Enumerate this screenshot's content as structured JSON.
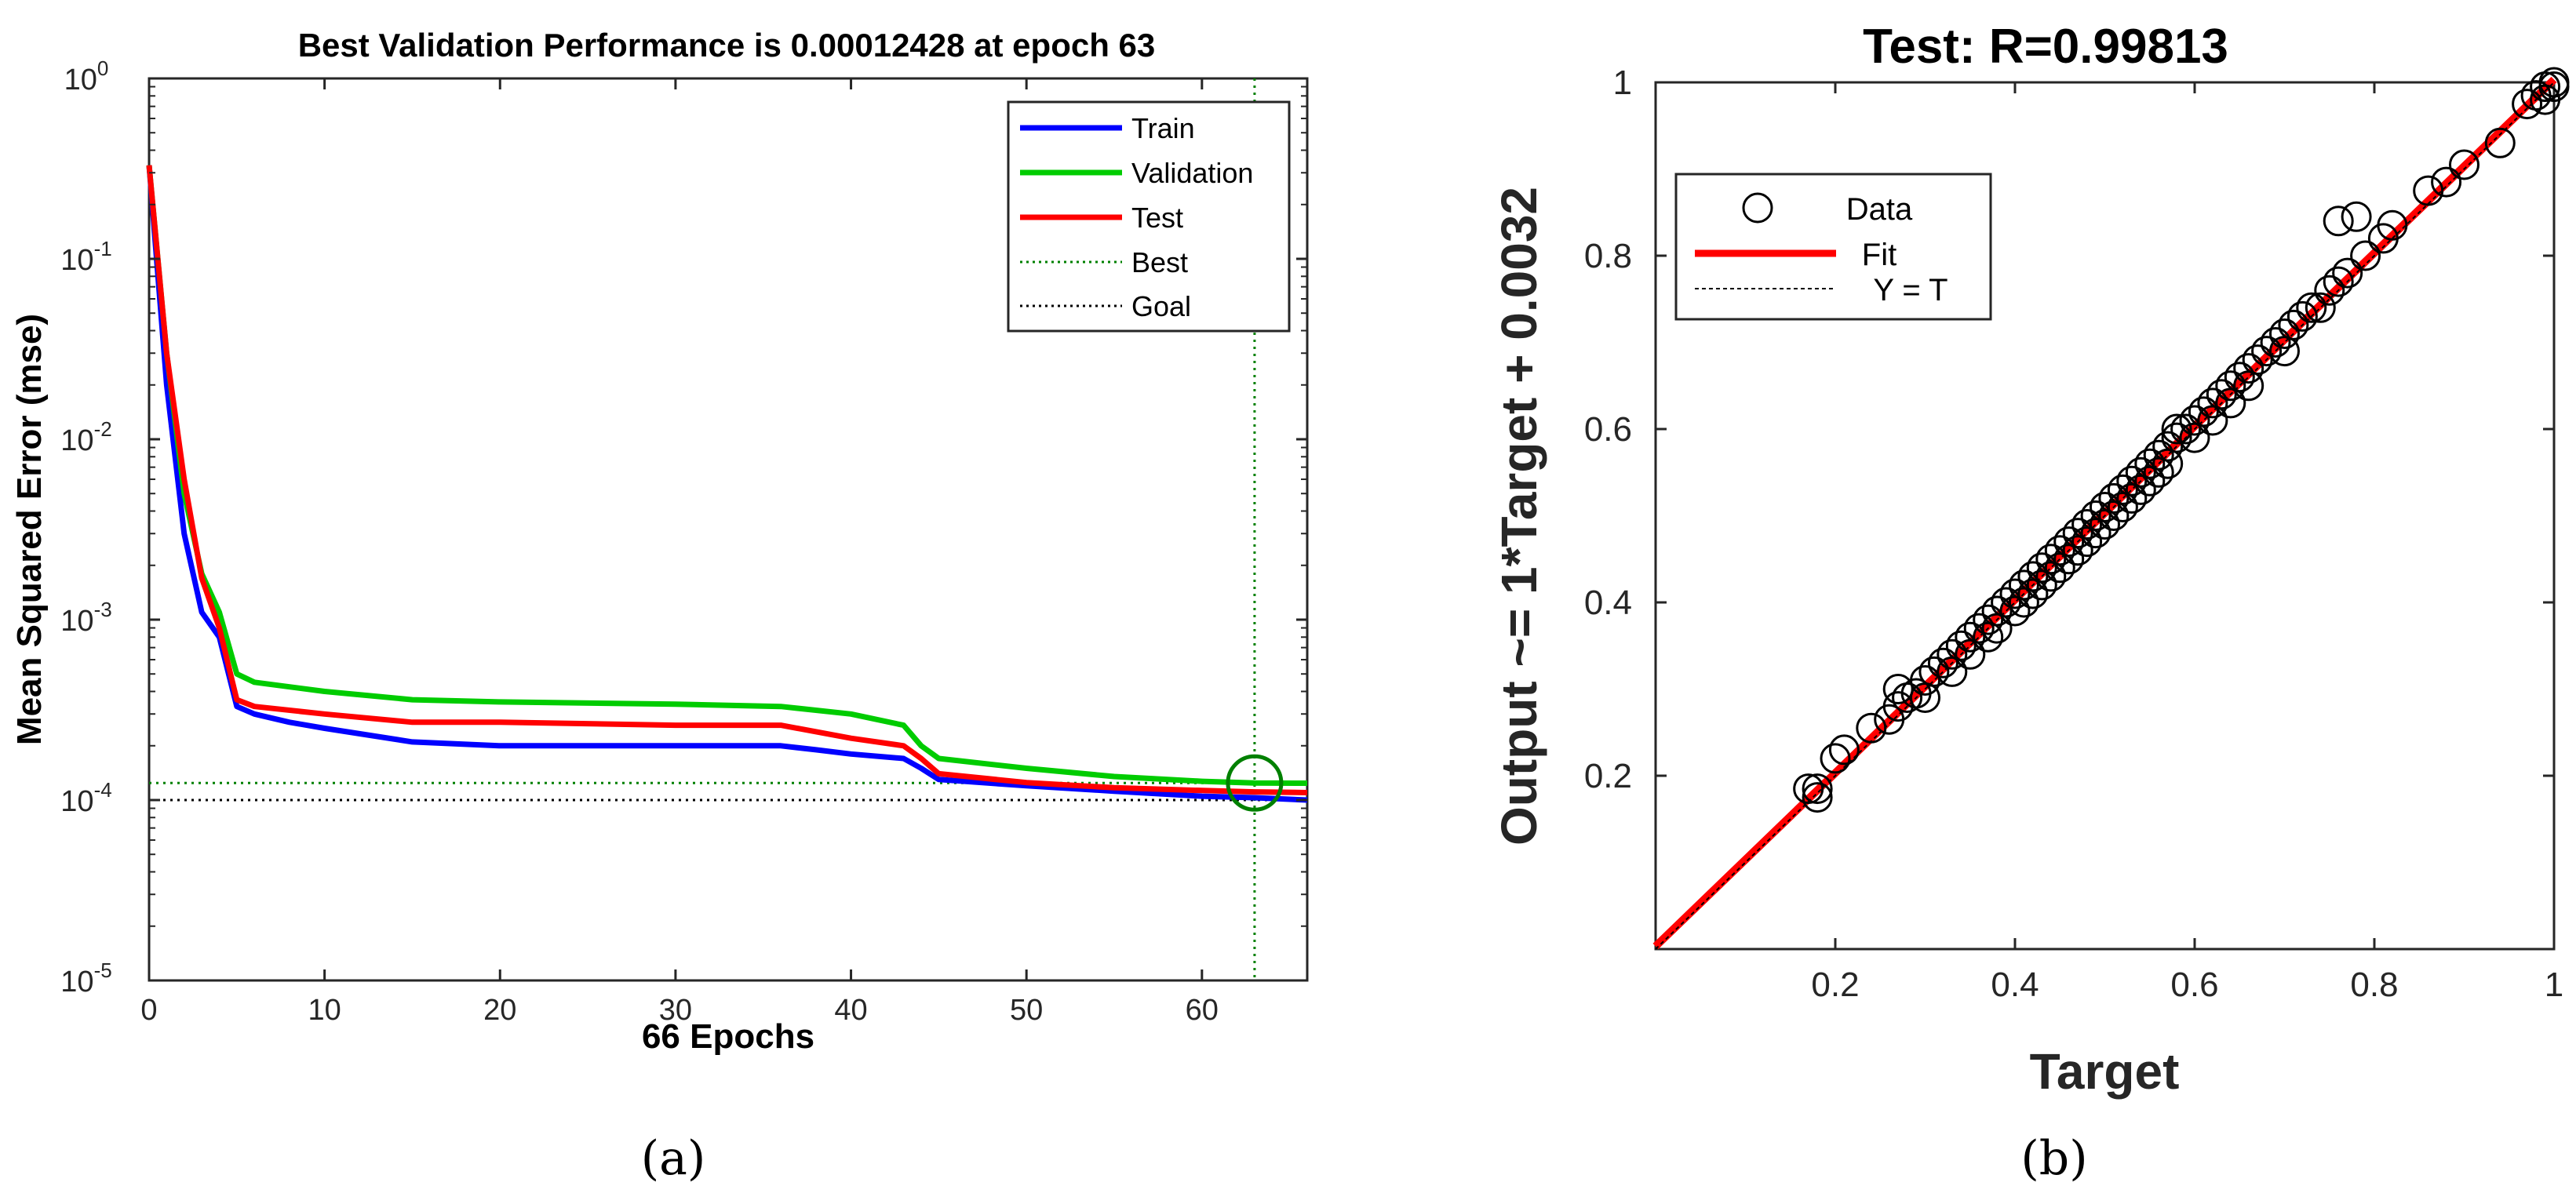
{
  "panels": {
    "a": {
      "label": "(a)"
    },
    "b": {
      "label": "(b)"
    }
  },
  "chart_data": [
    {
      "type": "line",
      "title": "Best Validation Performance is 0.00012428 at epoch 63",
      "xlabel": "66 Epochs",
      "ylabel": "Mean Squared Error  (mse)",
      "xlim": [
        0,
        66
      ],
      "ylim": [
        1e-05,
        1
      ],
      "yscale": "log",
      "xticks": [
        0,
        10,
        20,
        30,
        40,
        50,
        60
      ],
      "xtick_labels": [
        "0",
        "10",
        "20",
        "30",
        "40",
        "50",
        "60"
      ],
      "yticks": [
        1e-05,
        0.0001,
        0.001,
        0.01,
        0.1,
        1
      ],
      "ytick_labels": [
        [
          "10",
          "-5"
        ],
        [
          "10",
          "-4"
        ],
        [
          "10",
          "-3"
        ],
        [
          "10",
          "-2"
        ],
        [
          "10",
          "-1"
        ],
        [
          "10",
          "0"
        ]
      ],
      "series": [
        {
          "name": "Train",
          "color": "#0000ff",
          "points": [
            [
              0,
              0.33
            ],
            [
              1,
              0.02
            ],
            [
              2,
              0.003
            ],
            [
              3,
              0.0011
            ],
            [
              4,
              0.0008
            ],
            [
              5,
              0.00033
            ],
            [
              6,
              0.0003
            ],
            [
              8,
              0.00027
            ],
            [
              10,
              0.00025
            ],
            [
              15,
              0.00021
            ],
            [
              20,
              0.0002
            ],
            [
              30,
              0.0002
            ],
            [
              36,
              0.0002
            ],
            [
              38,
              0.00019
            ],
            [
              40,
              0.00018
            ],
            [
              43,
              0.00017
            ],
            [
              44,
              0.00015
            ],
            [
              45,
              0.00013
            ],
            [
              50,
              0.00012
            ],
            [
              55,
              0.000112
            ],
            [
              60,
              0.000105
            ],
            [
              63,
              0.000103
            ],
            [
              66,
              0.0001
            ]
          ]
        },
        {
          "name": "Validation",
          "color": "#00cc00",
          "points": [
            [
              0,
              0.33
            ],
            [
              1,
              0.03
            ],
            [
              2,
              0.005
            ],
            [
              3,
              0.0018
            ],
            [
              4,
              0.0011
            ],
            [
              5,
              0.0005
            ],
            [
              6,
              0.00045
            ],
            [
              10,
              0.0004
            ],
            [
              15,
              0.00036
            ],
            [
              20,
              0.00035
            ],
            [
              30,
              0.00034
            ],
            [
              36,
              0.00033
            ],
            [
              40,
              0.0003
            ],
            [
              43,
              0.00026
            ],
            [
              44,
              0.0002
            ],
            [
              45,
              0.00017
            ],
            [
              50,
              0.00015
            ],
            [
              55,
              0.000135
            ],
            [
              60,
              0.000127
            ],
            [
              63,
              0.00012428
            ],
            [
              66,
              0.000124
            ]
          ]
        },
        {
          "name": "Test",
          "color": "#ff0000",
          "points": [
            [
              0,
              0.33
            ],
            [
              1,
              0.03
            ],
            [
              2,
              0.006
            ],
            [
              3,
              0.0017
            ],
            [
              4,
              0.0009
            ],
            [
              5,
              0.00036
            ],
            [
              6,
              0.00033
            ],
            [
              10,
              0.0003
            ],
            [
              15,
              0.00027
            ],
            [
              20,
              0.00027
            ],
            [
              30,
              0.00026
            ],
            [
              36,
              0.00026
            ],
            [
              40,
              0.00022
            ],
            [
              43,
              0.0002
            ],
            [
              44,
              0.00017
            ],
            [
              45,
              0.00014
            ],
            [
              50,
              0.000125
            ],
            [
              55,
              0.000117
            ],
            [
              60,
              0.000113
            ],
            [
              63,
              0.000111
            ],
            [
              66,
              0.00011
            ]
          ]
        }
      ],
      "best": {
        "label": "Best",
        "epoch": 63,
        "value": 0.00012428,
        "color": "#008000"
      },
      "goal": {
        "label": "Goal",
        "value": 0.0001,
        "color": "#000000"
      },
      "legend": {
        "position": "top-right",
        "entries": [
          "Train",
          "Validation",
          "Test",
          "Best",
          "Goal"
        ]
      }
    },
    {
      "type": "scatter",
      "title": "Test: R=0.99813",
      "xlabel": "Target",
      "ylabel": "Output ~= 1*Target + 0.0032",
      "xlim": [
        0,
        1
      ],
      "ylim": [
        0,
        1
      ],
      "xticks": [
        0.2,
        0.4,
        0.6,
        0.8,
        1
      ],
      "xtick_labels": [
        "0.2",
        "0.4",
        "0.6",
        "0.8",
        "1"
      ],
      "yticks": [
        0.2,
        0.4,
        0.6,
        0.8,
        1
      ],
      "ytick_labels": [
        "0.2",
        "0.4",
        "0.6",
        "0.8",
        "1"
      ],
      "fit": {
        "label": "Fit",
        "slope": 1,
        "intercept": 0.0032,
        "color": "#ff0000"
      },
      "identity": {
        "label": "Y = T",
        "color": "#000000"
      },
      "data_label": "Data",
      "legend": {
        "position": "top-left",
        "entries": [
          "Data",
          "Fit",
          "Y = T"
        ]
      },
      "points": [
        [
          0.17,
          0.185
        ],
        [
          0.18,
          0.175
        ],
        [
          0.18,
          0.185
        ],
        [
          0.2,
          0.22
        ],
        [
          0.21,
          0.23
        ],
        [
          0.24,
          0.255
        ],
        [
          0.26,
          0.265
        ],
        [
          0.27,
          0.28
        ],
        [
          0.27,
          0.3
        ],
        [
          0.28,
          0.29
        ],
        [
          0.29,
          0.295
        ],
        [
          0.3,
          0.31
        ],
        [
          0.3,
          0.29
        ],
        [
          0.31,
          0.32
        ],
        [
          0.32,
          0.33
        ],
        [
          0.33,
          0.32
        ],
        [
          0.33,
          0.34
        ],
        [
          0.34,
          0.35
        ],
        [
          0.35,
          0.34
        ],
        [
          0.35,
          0.36
        ],
        [
          0.36,
          0.37
        ],
        [
          0.37,
          0.36
        ],
        [
          0.37,
          0.38
        ],
        [
          0.38,
          0.39
        ],
        [
          0.38,
          0.37
        ],
        [
          0.39,
          0.4
        ],
        [
          0.4,
          0.39
        ],
        [
          0.4,
          0.41
        ],
        [
          0.41,
          0.42
        ],
        [
          0.41,
          0.4
        ],
        [
          0.42,
          0.43
        ],
        [
          0.42,
          0.41
        ],
        [
          0.43,
          0.44
        ],
        [
          0.43,
          0.42
        ],
        [
          0.44,
          0.45
        ],
        [
          0.44,
          0.43
        ],
        [
          0.45,
          0.46
        ],
        [
          0.45,
          0.44
        ],
        [
          0.46,
          0.47
        ],
        [
          0.46,
          0.45
        ],
        [
          0.47,
          0.48
        ],
        [
          0.47,
          0.46
        ],
        [
          0.48,
          0.49
        ],
        [
          0.48,
          0.47
        ],
        [
          0.49,
          0.5
        ],
        [
          0.49,
          0.48
        ],
        [
          0.5,
          0.51
        ],
        [
          0.5,
          0.49
        ],
        [
          0.51,
          0.52
        ],
        [
          0.51,
          0.5
        ],
        [
          0.52,
          0.53
        ],
        [
          0.52,
          0.51
        ],
        [
          0.53,
          0.54
        ],
        [
          0.53,
          0.52
        ],
        [
          0.54,
          0.55
        ],
        [
          0.54,
          0.53
        ],
        [
          0.55,
          0.56
        ],
        [
          0.55,
          0.54
        ],
        [
          0.56,
          0.57
        ],
        [
          0.56,
          0.55
        ],
        [
          0.57,
          0.58
        ],
        [
          0.57,
          0.56
        ],
        [
          0.58,
          0.59
        ],
        [
          0.58,
          0.6
        ],
        [
          0.59,
          0.6
        ],
        [
          0.6,
          0.61
        ],
        [
          0.6,
          0.59
        ],
        [
          0.61,
          0.62
        ],
        [
          0.62,
          0.63
        ],
        [
          0.62,
          0.61
        ],
        [
          0.63,
          0.64
        ],
        [
          0.64,
          0.65
        ],
        [
          0.64,
          0.63
        ],
        [
          0.65,
          0.66
        ],
        [
          0.66,
          0.67
        ],
        [
          0.66,
          0.65
        ],
        [
          0.67,
          0.68
        ],
        [
          0.68,
          0.69
        ],
        [
          0.69,
          0.7
        ],
        [
          0.7,
          0.71
        ],
        [
          0.7,
          0.69
        ],
        [
          0.71,
          0.72
        ],
        [
          0.72,
          0.73
        ],
        [
          0.73,
          0.74
        ],
        [
          0.74,
          0.74
        ],
        [
          0.75,
          0.76
        ],
        [
          0.76,
          0.77
        ],
        [
          0.77,
          0.78
        ],
        [
          0.76,
          0.84
        ],
        [
          0.78,
          0.845
        ],
        [
          0.79,
          0.8
        ],
        [
          0.81,
          0.82
        ],
        [
          0.82,
          0.835
        ],
        [
          0.86,
          0.875
        ],
        [
          0.88,
          0.885
        ],
        [
          0.9,
          0.905
        ],
        [
          0.94,
          0.93
        ],
        [
          0.97,
          0.975
        ],
        [
          0.98,
          0.985
        ],
        [
          0.99,
          0.98
        ],
        [
          1.0,
          0.995
        ],
        [
          1.0,
          1.0
        ],
        [
          0.99,
          0.995
        ]
      ]
    }
  ]
}
